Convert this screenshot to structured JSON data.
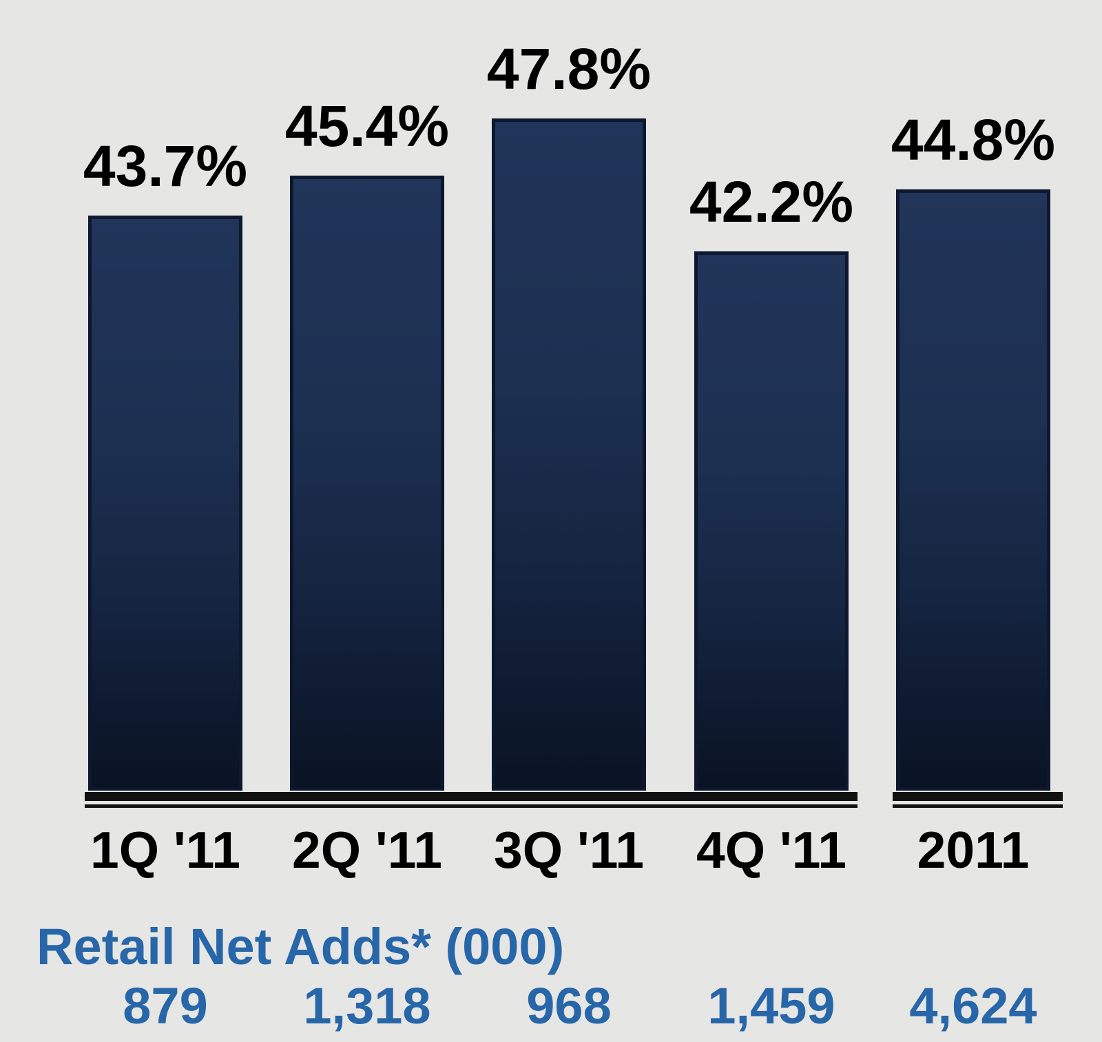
{
  "chart_data": {
    "type": "bar",
    "title": "",
    "categories": [
      "1Q '11",
      "2Q '11",
      "3Q '11",
      "4Q '11",
      "2011"
    ],
    "series": [
      {
        "name": "percent-series",
        "values": [
          43.7,
          45.4,
          47.8,
          42.2,
          44.8
        ],
        "labels": [
          "43.7%",
          "45.4%",
          "47.8%",
          "42.2%",
          "44.8%"
        ]
      }
    ],
    "secondary_row": {
      "label": "Retail Net Adds* (000)",
      "values": [
        "879",
        "1,318",
        "968",
        "1,459",
        "4,624"
      ]
    },
    "legend": "none",
    "grid": false,
    "data_labels": "above-bars",
    "colors": {
      "bar_top": "#213459",
      "bar_bottom": "#0a1322",
      "bar_border": "#0d1830",
      "axis": "#111111",
      "data_label": "#000000",
      "category_label": "#000000",
      "secondary_text": "#2766a8",
      "background": "#e6e6e4"
    }
  }
}
